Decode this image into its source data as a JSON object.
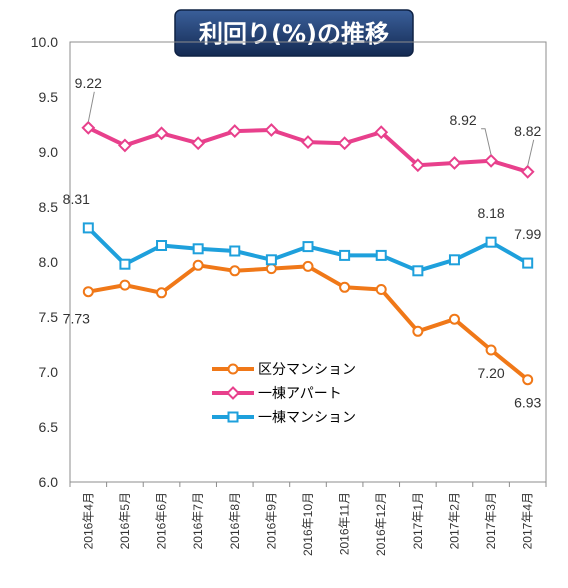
{
  "chart_data": {
    "type": "line",
    "title": "利回り(%)の推移",
    "categories": [
      "2016年4月",
      "2016年5月",
      "2016年6月",
      "2016年7月",
      "2016年8月",
      "2016年9月",
      "2016年10月",
      "2016年11月",
      "2016年12月",
      "2017年1月",
      "2017年2月",
      "2017年3月",
      "2017年4月"
    ],
    "ylim": [
      6.0,
      10.0
    ],
    "yticks": [
      "6.0",
      "6.5",
      "7.0",
      "7.5",
      "8.0",
      "8.5",
      "9.0",
      "9.5",
      "10.0"
    ],
    "grid": false,
    "legend_position": "center-bottom (inside plot)",
    "series": [
      {
        "name": "区分マンション",
        "color": "#f07818",
        "marker": "circle",
        "values": [
          7.73,
          7.79,
          7.72,
          7.97,
          7.92,
          7.94,
          7.96,
          7.77,
          7.75,
          7.37,
          7.48,
          7.2,
          6.93
        ]
      },
      {
        "name": "一棟アパート",
        "color": "#e8408c",
        "marker": "diamond",
        "values": [
          9.22,
          9.06,
          9.17,
          9.08,
          9.19,
          9.2,
          9.09,
          9.08,
          9.18,
          8.88,
          8.9,
          8.92,
          8.82
        ]
      },
      {
        "name": "一棟マンション",
        "color": "#1ea0dc",
        "marker": "square",
        "values": [
          8.31,
          7.98,
          8.15,
          8.12,
          8.1,
          8.02,
          8.14,
          8.06,
          8.06,
          7.92,
          8.02,
          8.18,
          7.99
        ]
      }
    ],
    "data_labels": [
      {
        "series": 1,
        "index": 0,
        "text": "9.22"
      },
      {
        "series": 1,
        "index": 11,
        "text": "8.92"
      },
      {
        "series": 1,
        "index": 12,
        "text": "8.82"
      },
      {
        "series": 2,
        "index": 0,
        "text": "8.31"
      },
      {
        "series": 2,
        "index": 11,
        "text": "8.18"
      },
      {
        "series": 2,
        "index": 12,
        "text": "7.99"
      },
      {
        "series": 0,
        "index": 0,
        "text": "7.73"
      },
      {
        "series": 0,
        "index": 11,
        "text": "7.20"
      },
      {
        "series": 0,
        "index": 12,
        "text": "6.93"
      }
    ],
    "colors": {
      "title_bg": "#1e3c6e",
      "axis": "#7f7f7f"
    }
  }
}
